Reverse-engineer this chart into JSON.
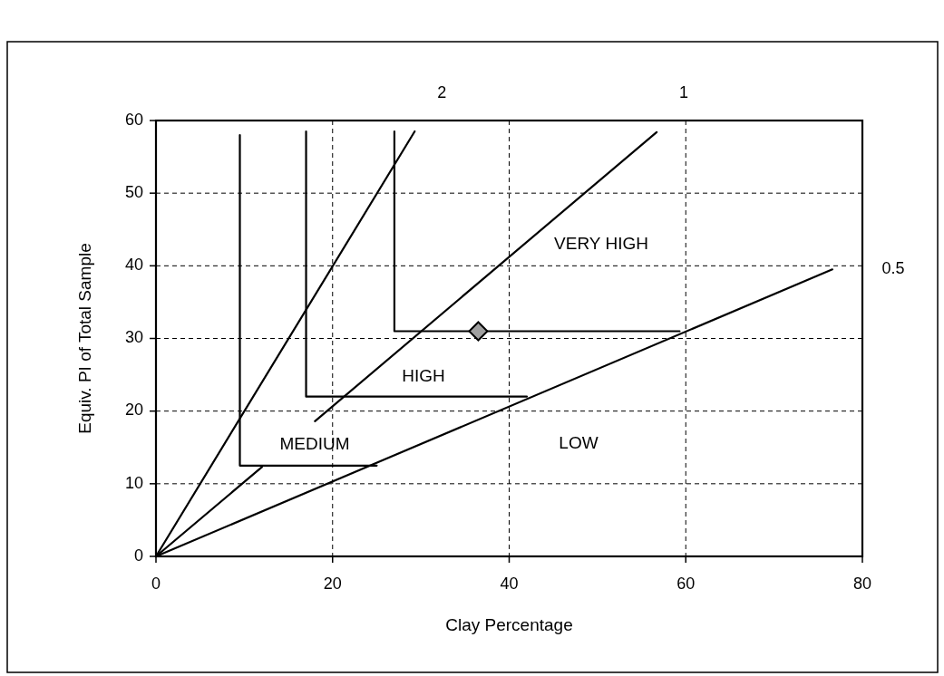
{
  "chart_data": {
    "type": "line",
    "xlabel": "Clay Percentage",
    "ylabel": "Equiv. PI of Total Sample",
    "xlim": [
      0,
      80
    ],
    "xticks": [
      0,
      20,
      40,
      60,
      80
    ],
    "ylim": [
      0,
      60
    ],
    "yticks": [
      0,
      10,
      20,
      30,
      40,
      50,
      60
    ],
    "grid": true,
    "marker": "none",
    "line_style": "solid",
    "series": [
      {
        "name": "2",
        "color": "#000000",
        "x": [
          0,
          29.3
        ],
        "values": [
          0,
          58.5
        ]
      },
      {
        "name": "1",
        "color": "#000000",
        "x": [
          18,
          56.7
        ],
        "values": [
          18.6,
          58.4
        ]
      },
      {
        "color": "#000000",
        "x": [
          0,
          12
        ],
        "values": [
          0,
          12.3
        ]
      },
      {
        "name": "0.5",
        "color": "#000000",
        "x": [
          0,
          76.6
        ],
        "values": [
          0,
          39.5
        ]
      },
      {
        "color": "#000000",
        "x": [
          9.5,
          9.5,
          25
        ],
        "values": [
          58,
          12.5,
          12.5
        ]
      },
      {
        "color": "#000000",
        "x": [
          17,
          17,
          42
        ],
        "values": [
          58.5,
          22,
          22
        ]
      },
      {
        "color": "#000000",
        "x": [
          27,
          27,
          59.3
        ],
        "values": [
          58.5,
          31,
          31
        ]
      },
      {
        "type": "scatter",
        "marker": "diamond",
        "color": "#a0a0a0",
        "x": [
          36.5
        ],
        "values": [
          31
        ]
      }
    ],
    "annotations": [
      "VERY HIGH",
      "HIGH",
      "MEDIUM",
      "LOW"
    ]
  }
}
